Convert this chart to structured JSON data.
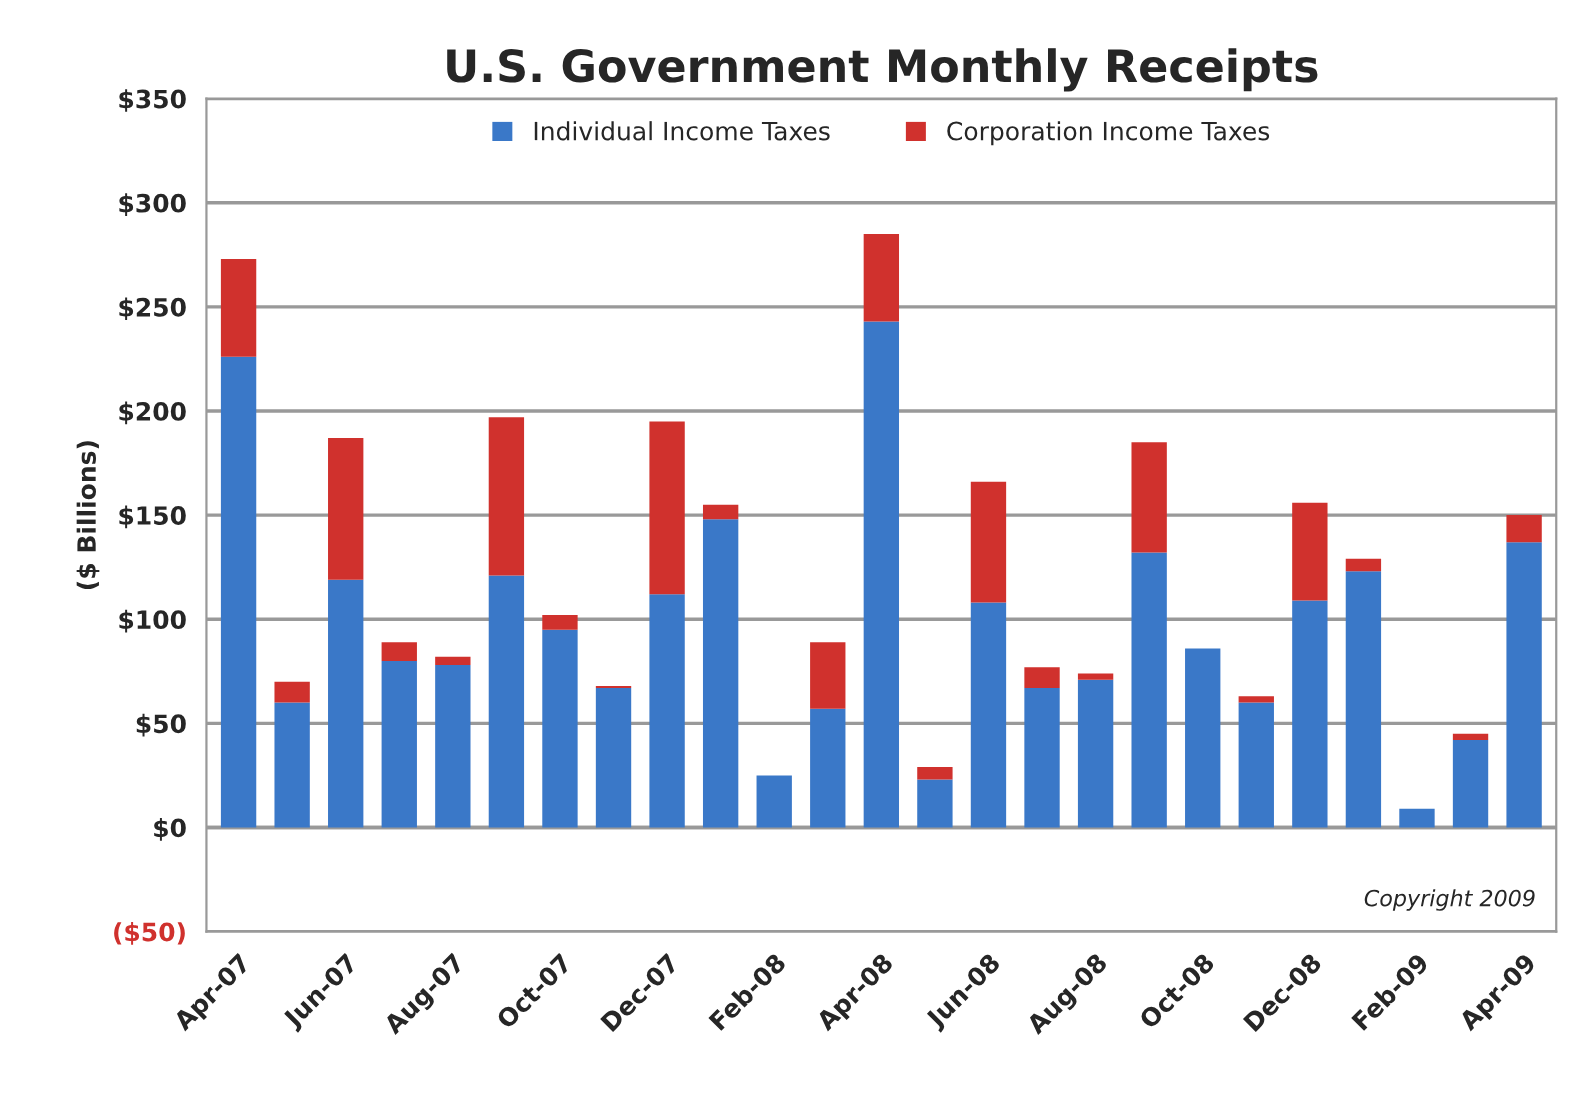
{
  "chart_data": {
    "type": "bar",
    "title": "U.S. Government Monthly Receipts",
    "ylabel": "($ Billions)",
    "stacked": true,
    "legend": "top",
    "grid": "y",
    "categories": [
      "Apr-07",
      null,
      "Jun-07",
      null,
      "Aug-07",
      null,
      "Oct-07",
      null,
      "Dec-07",
      null,
      "Feb-08",
      null,
      "Apr-08",
      null,
      "Jun-08",
      null,
      "Aug-08",
      null,
      "Oct-08",
      null,
      "Dec-08",
      null,
      "Feb-09",
      null,
      "Apr-09"
    ],
    "series": [
      {
        "name": "Individual Income Taxes",
        "color": "#3a78c8",
        "values": [
          226,
          60,
          119,
          80,
          78,
          121,
          95,
          67,
          112,
          148,
          25,
          57,
          243,
          23,
          108,
          67,
          71,
          132,
          86,
          60,
          109,
          123,
          9,
          42,
          137
        ]
      },
      {
        "name": "Corporation Income Taxes",
        "color": "#d0312d",
        "values": [
          47,
          10,
          68,
          9,
          4,
          76,
          7,
          1,
          83,
          7,
          0,
          32,
          42,
          6,
          58,
          10,
          3,
          53,
          0,
          3,
          47,
          6,
          0,
          3,
          13
        ]
      }
    ],
    "ylim": [
      -50,
      350
    ],
    "yticks": [
      {
        "value": -50,
        "label": "($50)"
      },
      {
        "value": 0,
        "label": "$0"
      },
      {
        "value": 50,
        "label": "$50"
      },
      {
        "value": 100,
        "label": "$100"
      },
      {
        "value": 150,
        "label": "$150"
      },
      {
        "value": 200,
        "label": "$200"
      },
      {
        "value": 250,
        "label": "$250"
      },
      {
        "value": 300,
        "label": "$300"
      },
      {
        "value": 350,
        "label": "$350"
      }
    ],
    "annotations": [
      "Copyright 2009"
    ]
  }
}
